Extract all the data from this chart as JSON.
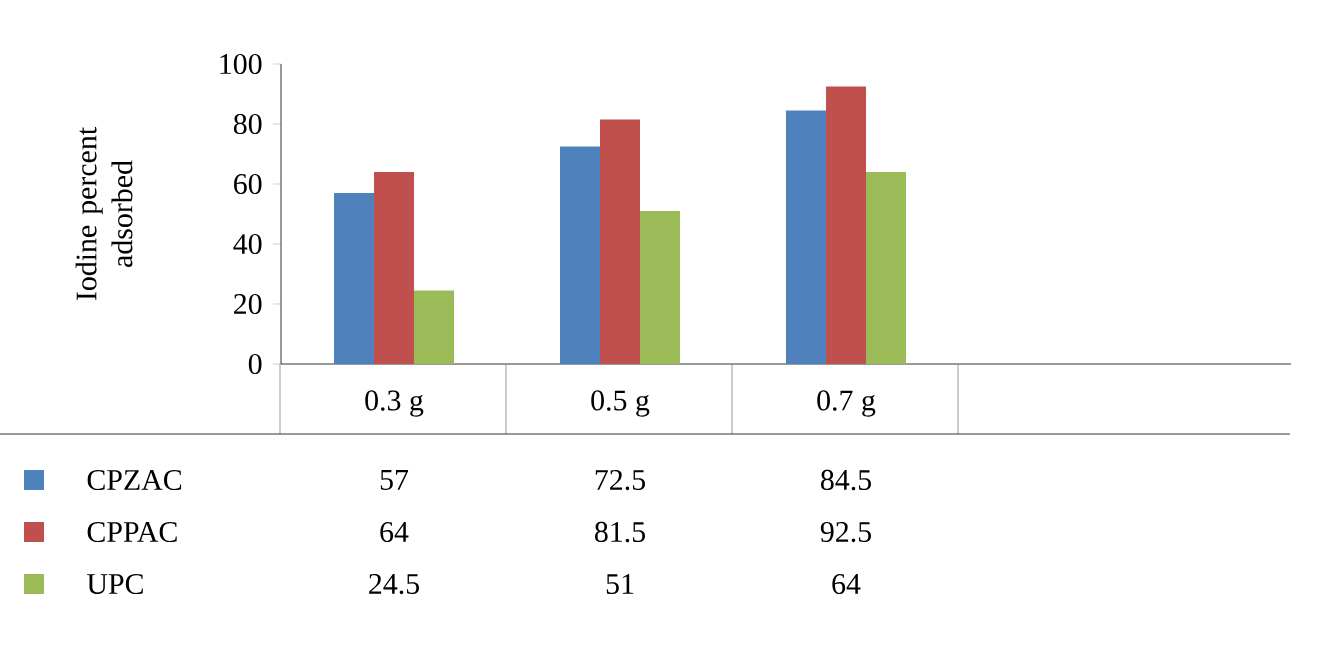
{
  "chart_data": {
    "type": "bar",
    "ylabel": "Iodine percent adsorbed",
    "categories": [
      "0.3 g",
      "0.5 g",
      "0.7 g"
    ],
    "series": [
      {
        "name": "CPZAC",
        "color": "#4f81bd",
        "values": [
          57,
          72.5,
          84.5
        ]
      },
      {
        "name": "CPPAC",
        "color": "#c0504d",
        "values": [
          64,
          81.5,
          92.5
        ]
      },
      {
        "name": "UPC",
        "color": "#9bbb59",
        "values": [
          24.5,
          51,
          64
        ]
      }
    ],
    "ylim": [
      0,
      100
    ],
    "yticks": [
      0,
      20,
      40,
      60,
      80,
      100
    ],
    "data_labels": true,
    "legend": "bottom"
  }
}
